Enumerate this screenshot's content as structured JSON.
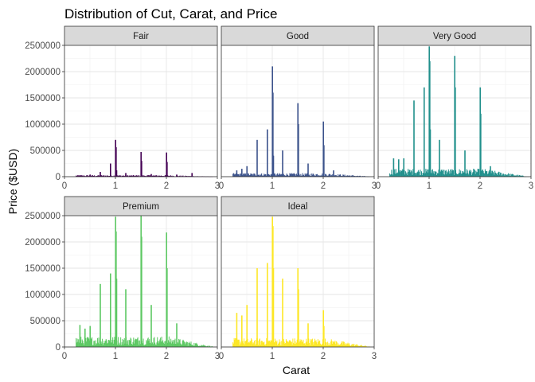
{
  "chart_data": {
    "type": "bar",
    "title": "Distribution of Cut, Carat, and Price",
    "xlabel": "Carat",
    "ylabel": "Price ($USD)",
    "xlim": [
      0,
      3
    ],
    "ylim": [
      0,
      2500000
    ],
    "x_ticks": [
      "0",
      "1",
      "2",
      "3"
    ],
    "y_ticks": [
      "0",
      "500000",
      "1000000",
      "1500000",
      "2000000",
      "2500000"
    ],
    "grid": true,
    "legend": "none",
    "facets": [
      {
        "name": "Fair",
        "color": "#440154",
        "bars": [
          [
            0.3,
            25000
          ],
          [
            0.5,
            40000
          ],
          [
            0.7,
            90000
          ],
          [
            0.9,
            250000
          ],
          [
            1.0,
            700000
          ],
          [
            1.01,
            560000
          ],
          [
            1.02,
            120000
          ],
          [
            1.2,
            70000
          ],
          [
            1.5,
            470000
          ],
          [
            1.51,
            300000
          ],
          [
            1.7,
            50000
          ],
          [
            2.0,
            460000
          ],
          [
            2.01,
            280000
          ],
          [
            2.2,
            40000
          ],
          [
            2.5,
            70000
          ]
        ],
        "base": 18000
      },
      {
        "name": "Good",
        "color": "#3B528B",
        "bars": [
          [
            0.3,
            120000
          ],
          [
            0.4,
            150000
          ],
          [
            0.5,
            200000
          ],
          [
            0.7,
            700000
          ],
          [
            0.9,
            900000
          ],
          [
            1.0,
            2100000
          ],
          [
            1.01,
            1600000
          ],
          [
            1.02,
            400000
          ],
          [
            1.2,
            500000
          ],
          [
            1.5,
            1400000
          ],
          [
            1.51,
            1000000
          ],
          [
            1.7,
            250000
          ],
          [
            2.0,
            1050000
          ],
          [
            2.01,
            600000
          ],
          [
            2.2,
            120000
          ]
        ],
        "base": 40000
      },
      {
        "name": "Very Good",
        "color": "#21908C",
        "bars": [
          [
            0.3,
            350000
          ],
          [
            0.4,
            330000
          ],
          [
            0.5,
            350000
          ],
          [
            0.7,
            1450000
          ],
          [
            0.9,
            1700000
          ],
          [
            1.0,
            2480000
          ],
          [
            1.01,
            2200000
          ],
          [
            1.02,
            900000
          ],
          [
            1.2,
            700000
          ],
          [
            1.5,
            2300000
          ],
          [
            1.51,
            1700000
          ],
          [
            1.7,
            500000
          ],
          [
            2.0,
            1700000
          ],
          [
            2.01,
            1200000
          ],
          [
            2.2,
            200000
          ]
        ],
        "base": 90000
      },
      {
        "name": "Premium",
        "color": "#5DC863",
        "bars": [
          [
            0.3,
            420000
          ],
          [
            0.4,
            350000
          ],
          [
            0.5,
            400000
          ],
          [
            0.7,
            1200000
          ],
          [
            0.9,
            1400000
          ],
          [
            1.0,
            2480000
          ],
          [
            1.01,
            2200000
          ],
          [
            1.02,
            1300000
          ],
          [
            1.2,
            1100000
          ],
          [
            1.5,
            2500000
          ],
          [
            1.51,
            2100000
          ],
          [
            1.7,
            800000
          ],
          [
            2.0,
            2180000
          ],
          [
            2.01,
            1500000
          ],
          [
            2.2,
            450000
          ]
        ],
        "base": 120000
      },
      {
        "name": "Ideal",
        "color": "#FDE725",
        "bars": [
          [
            0.3,
            650000
          ],
          [
            0.4,
            600000
          ],
          [
            0.5,
            800000
          ],
          [
            0.7,
            1500000
          ],
          [
            0.9,
            1600000
          ],
          [
            1.0,
            2480000
          ],
          [
            1.01,
            2300000
          ],
          [
            1.02,
            1500000
          ],
          [
            1.2,
            1300000
          ],
          [
            1.5,
            1500000
          ],
          [
            1.51,
            1100000
          ],
          [
            1.7,
            450000
          ],
          [
            2.0,
            700000
          ],
          [
            2.01,
            400000
          ],
          [
            2.2,
            100000
          ]
        ],
        "base": 100000
      }
    ]
  }
}
